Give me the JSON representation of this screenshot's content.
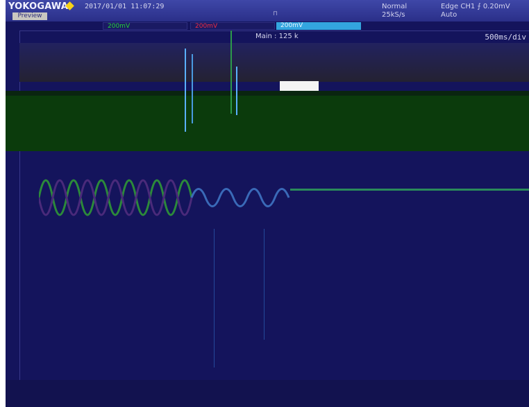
{
  "header": {
    "brand": "YOKOGAWA",
    "mode_badge": "Preview",
    "datetime": "2017/01/01 11:07:29",
    "acquisition_mode": "Normal",
    "sample_rate": "25kS/s",
    "trigger_source": "Edge CH1",
    "trigger_level": "0.20mV",
    "trigger_mode": "Auto",
    "small_marker": "⊓"
  },
  "channels": [
    {
      "label": "200mV",
      "color": "#25d13a"
    },
    {
      "label": "200mV",
      "color": "#ef2c44"
    },
    {
      "label": "200mV",
      "color": "#e7f6ff"
    }
  ],
  "display": {
    "main_record": "Main : 125 k",
    "timebase": "500ms/div"
  },
  "colors": {
    "screen_bg": "#14145c",
    "header_bg": "#3f47a8",
    "ch1": "#25d13a",
    "ch2": "#ef2c44",
    "ch3": "#33a5df",
    "logo_diamond": "#f7d218"
  }
}
